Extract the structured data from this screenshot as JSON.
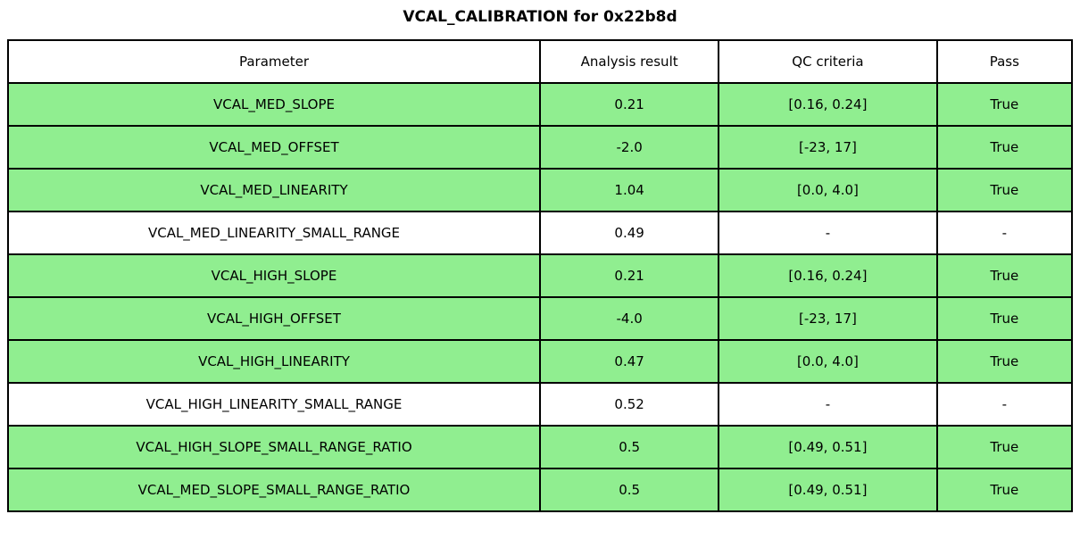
{
  "title": "VCAL_CALIBRATION for 0x22b8d",
  "chart_data": {
    "type": "table",
    "title": "VCAL_CALIBRATION for 0x22b8d",
    "columns": [
      "Parameter",
      "Analysis result",
      "QC criteria",
      "Pass"
    ],
    "rows": [
      {
        "parameter": "VCAL_MED_SLOPE",
        "analysis_result": "0.21",
        "qc_criteria": "[0.16, 0.24]",
        "pass": "True",
        "highlighted": true
      },
      {
        "parameter": "VCAL_MED_OFFSET",
        "analysis_result": "-2.0",
        "qc_criteria": "[-23, 17]",
        "pass": "True",
        "highlighted": true
      },
      {
        "parameter": "VCAL_MED_LINEARITY",
        "analysis_result": "1.04",
        "qc_criteria": "[0.0, 4.0]",
        "pass": "True",
        "highlighted": true
      },
      {
        "parameter": "VCAL_MED_LINEARITY_SMALL_RANGE",
        "analysis_result": "0.49",
        "qc_criteria": "-",
        "pass": "-",
        "highlighted": false
      },
      {
        "parameter": "VCAL_HIGH_SLOPE",
        "analysis_result": "0.21",
        "qc_criteria": "[0.16, 0.24]",
        "pass": "True",
        "highlighted": true
      },
      {
        "parameter": "VCAL_HIGH_OFFSET",
        "analysis_result": "-4.0",
        "qc_criteria": "[-23, 17]",
        "pass": "True",
        "highlighted": true
      },
      {
        "parameter": "VCAL_HIGH_LINEARITY",
        "analysis_result": "0.47",
        "qc_criteria": "[0.0, 4.0]",
        "pass": "True",
        "highlighted": true
      },
      {
        "parameter": "VCAL_HIGH_LINEARITY_SMALL_RANGE",
        "analysis_result": "0.52",
        "qc_criteria": "-",
        "pass": "-",
        "highlighted": false
      },
      {
        "parameter": "VCAL_HIGH_SLOPE_SMALL_RANGE_RATIO",
        "analysis_result": "0.5",
        "qc_criteria": "[0.49, 0.51]",
        "pass": "True",
        "highlighted": true
      },
      {
        "parameter": "VCAL_MED_SLOPE_SMALL_RANGE_RATIO",
        "analysis_result": "0.5",
        "qc_criteria": "[0.49, 0.51]",
        "pass": "True",
        "highlighted": true
      }
    ],
    "colors": {
      "pass_row_background": "#90ee90",
      "neutral_row_background": "#ffffff",
      "border": "#000000",
      "text": "#000000"
    },
    "layout": {
      "header_background": "#ffffff",
      "text_align": "center",
      "column_width_fractions": [
        0.5,
        0.168,
        0.205,
        0.127
      ]
    }
  }
}
